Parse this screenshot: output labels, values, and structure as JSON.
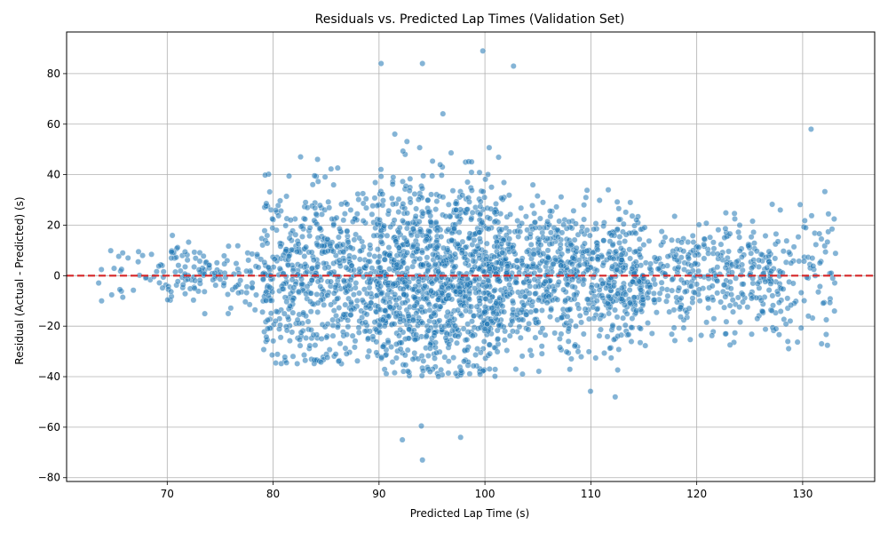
{
  "chart_data": {
    "type": "scatter",
    "title": "Residuals vs. Predicted Lap Times (Validation Set)",
    "xlabel": "Predicted Lap Time (s)",
    "ylabel": "Residual (Actual - Predicted) (s)",
    "xlim": [
      60.5,
      136.8
    ],
    "ylim": [
      -81.5,
      96.5
    ],
    "xticks": [
      70,
      80,
      90,
      100,
      110,
      120,
      130
    ],
    "yticks": [
      -80,
      -60,
      -40,
      -20,
      0,
      20,
      40,
      60,
      80
    ],
    "grid": true,
    "reference_line": {
      "y": 0,
      "style": "dashed",
      "color": "#d62728"
    },
    "point_color": "#1f77b4",
    "point_count_approx": 3000,
    "density_profile": [
      {
        "x_range": [
          63.5,
          70
        ],
        "y_range": [
          -25,
          10
        ],
        "density": "sparse"
      },
      {
        "x_range": [
          70,
          79
        ],
        "y_range": [
          -27,
          20
        ],
        "density": "low"
      },
      {
        "x_range": [
          79,
          90
        ],
        "y_range": [
          -35,
          80
        ],
        "density": "high"
      },
      {
        "x_range": [
          90,
          102
        ],
        "y_range": [
          -40,
          89
        ],
        "density": "very high"
      },
      {
        "x_range": [
          102,
          115
        ],
        "y_range": [
          -48,
          64
        ],
        "density": "high"
      },
      {
        "x_range": [
          115,
          128
        ],
        "y_range": [
          -45,
          48
        ],
        "density": "medium"
      },
      {
        "x_range": [
          128,
          133.5
        ],
        "y_range": [
          -33,
          58
        ],
        "density": "low"
      }
    ],
    "notable_points": [
      {
        "x": 94.1,
        "y": -73
      },
      {
        "x": 92.2,
        "y": -65
      },
      {
        "x": 97.7,
        "y": -64
      },
      {
        "x": 94.0,
        "y": -59.5
      },
      {
        "x": 112.3,
        "y": -48
      },
      {
        "x": 99.8,
        "y": 89
      },
      {
        "x": 90.2,
        "y": 84
      },
      {
        "x": 94.1,
        "y": 84
      },
      {
        "x": 102.7,
        "y": 83
      },
      {
        "x": 130.8,
        "y": 58
      },
      {
        "x": 65.8,
        "y": 9
      },
      {
        "x": 63.8,
        "y": -10
      },
      {
        "x": 66.3,
        "y": 7
      },
      {
        "x": 133,
        "y": -14
      }
    ]
  }
}
